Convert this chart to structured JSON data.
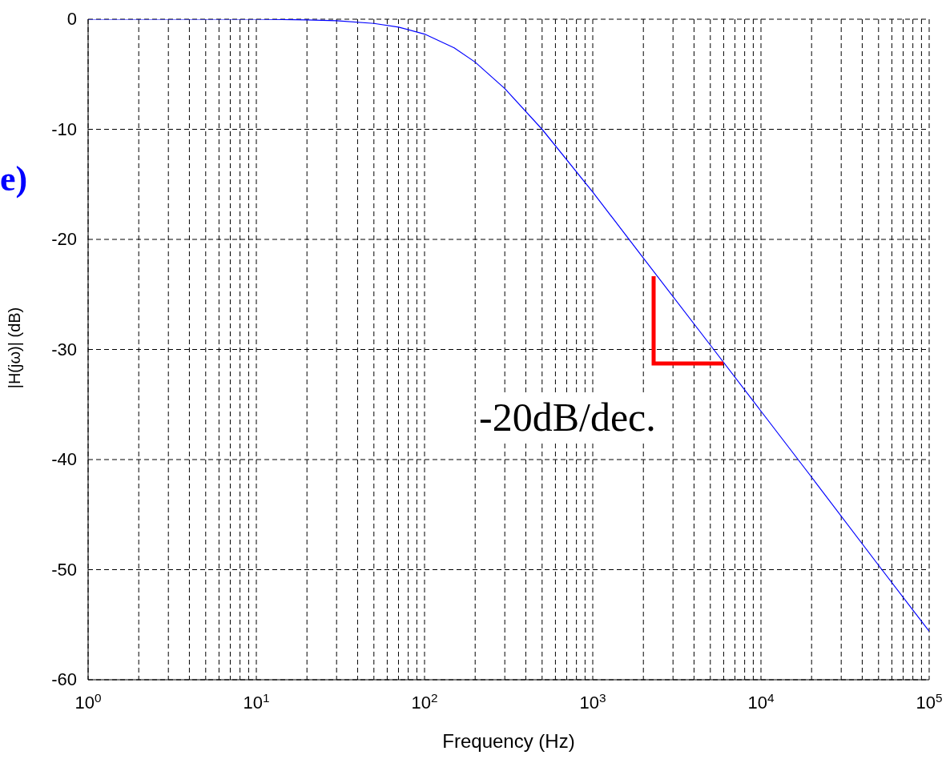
{
  "chart_data": {
    "type": "line",
    "xlabel": "Frequency (Hz)",
    "ylabel": "|H(jω)| (dB)",
    "annotations": [
      "e)",
      "-20dB/dec."
    ],
    "x": [
      1,
      10,
      20,
      30,
      50,
      70,
      100,
      150,
      200,
      300,
      500,
      1000,
      2000,
      5000,
      10000,
      20000,
      50000,
      100000
    ],
    "series": [
      {
        "color": "#0000ff",
        "values": [
          0,
          0,
          -0.06,
          -0.14,
          -0.38,
          -0.72,
          -1.35,
          -2.6,
          -3.9,
          -6.3,
          -10,
          -15.7,
          -21.7,
          -29.6,
          -35.6,
          -41.6,
          -49.6,
          -55.6
        ]
      }
    ],
    "log": "x",
    "xlim": [
      1,
      100000
    ],
    "ylim": [
      -60,
      0
    ],
    "xticks": [
      {
        "value": 1,
        "label": "10$^{0}$"
      },
      {
        "value": 2,
        "label": null
      },
      {
        "value": 3,
        "label": null
      },
      {
        "value": 4,
        "label": null
      },
      {
        "value": 5,
        "label": null
      },
      {
        "value": 6,
        "label": null
      },
      {
        "value": 7,
        "label": null
      },
      {
        "value": 8,
        "label": null
      },
      {
        "value": 9,
        "label": null
      },
      {
        "value": 10,
        "label": "10$^{1}$"
      },
      {
        "value": 20,
        "label": null
      },
      {
        "value": 30,
        "label": null
      },
      {
        "value": 40,
        "label": null
      },
      {
        "value": 50,
        "label": null
      },
      {
        "value": 60,
        "label": null
      },
      {
        "value": 70,
        "label": null
      },
      {
        "value": 80,
        "label": null
      },
      {
        "value": 90,
        "label": null
      },
      {
        "value": 100,
        "label": "10$^{2}$"
      },
      {
        "value": 200,
        "label": null
      },
      {
        "value": 300,
        "label": null
      },
      {
        "value": 400,
        "label": null
      },
      {
        "value": 500,
        "label": null
      },
      {
        "value": 600,
        "label": null
      },
      {
        "value": 700,
        "label": null
      },
      {
        "value": 800,
        "label": null
      },
      {
        "value": 900,
        "label": null
      },
      {
        "value": 1000,
        "label": "10$^{3}$"
      },
      {
        "value": 2000,
        "label": null
      },
      {
        "value": 3000,
        "label": null
      },
      {
        "value": 4000,
        "label": null
      },
      {
        "value": 5000,
        "label": null
      },
      {
        "value": 6000,
        "label": null
      },
      {
        "value": 7000,
        "label": null
      },
      {
        "value": 8000,
        "label": null
      },
      {
        "value": 9000,
        "label": null
      },
      {
        "value": 10000,
        "label": "10$^{4}$"
      },
      {
        "value": 20000,
        "label": null
      },
      {
        "value": 30000,
        "label": null
      },
      {
        "value": 40000,
        "label": null
      },
      {
        "value": 50000,
        "label": null
      },
      {
        "value": 60000,
        "label": null
      },
      {
        "value": 70000,
        "label": null
      },
      {
        "value": 80000,
        "label": null
      },
      {
        "value": 90000,
        "label": null
      },
      {
        "value": 100000,
        "label": "10$^{5}$"
      }
    ],
    "yticks": [
      -60,
      -50,
      -40,
      -30,
      -20,
      -10,
      0
    ],
    "grid": true,
    "marker": "none"
  }
}
